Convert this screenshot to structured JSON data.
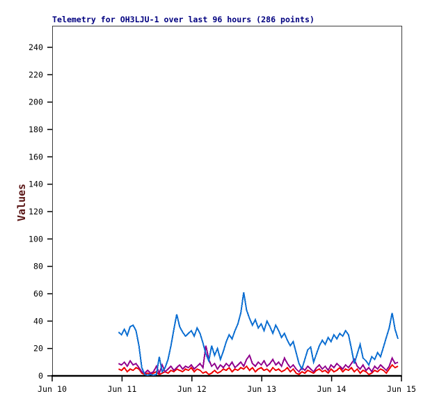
{
  "chart": {
    "title": "Telemetry for OH3LJU-1 over last 96 hours (286 points)",
    "title_color": "#000080",
    "ylabel": "Values",
    "ylabel_color": "#5a1515",
    "frame_color": "#3c3c3c",
    "axis_color": "#000000",
    "tick_color": "#000000"
  },
  "chart_data": {
    "type": "line",
    "title": "Telemetry for OH3LJU-1 over last 96 hours (286 points)",
    "xlabel": "",
    "ylabel": "Values",
    "points_shown": 286,
    "ylim": [
      0,
      255
    ],
    "yticks": [
      0,
      20,
      40,
      60,
      80,
      100,
      120,
      140,
      160,
      180,
      200,
      220,
      240
    ],
    "xtick_labels": [
      "Jun 10",
      "Jun 11",
      "Jun 12",
      "Jun 13",
      "Jun 14",
      "Jun 15"
    ],
    "x_days_span": 5,
    "x_start_day_offset": 0.95,
    "x_step_hours": 1,
    "grid": false,
    "legend": "none",
    "series": [
      {
        "name": "red",
        "color": "#ee0000",
        "values": [
          5,
          4,
          6,
          3,
          5,
          4,
          6,
          5,
          2,
          1,
          2,
          1,
          2,
          3,
          1,
          2,
          3,
          2,
          4,
          3,
          5,
          4,
          3,
          5,
          4,
          6,
          3,
          5,
          4,
          2,
          3,
          1,
          2,
          4,
          2,
          3,
          5,
          4,
          6,
          3,
          5,
          4,
          6,
          5,
          7,
          4,
          6,
          3,
          5,
          6,
          4,
          5,
          3,
          6,
          4,
          5,
          3,
          4,
          6,
          3,
          5,
          2,
          1,
          3,
          2,
          4,
          3,
          2,
          4,
          5,
          3,
          4,
          2,
          5,
          3,
          4,
          6,
          3,
          5,
          4,
          6,
          3,
          5,
          2,
          4,
          3,
          1,
          2,
          4,
          3,
          5,
          4,
          2,
          5,
          8,
          6,
          7
        ]
      },
      {
        "name": "purple",
        "color": "#90008e",
        "values": [
          9,
          8,
          10,
          7,
          11,
          8,
          9,
          6,
          3,
          2,
          4,
          2,
          3,
          7,
          2,
          8,
          3,
          5,
          7,
          4,
          6,
          8,
          5,
          7,
          6,
          8,
          5,
          7,
          9,
          6,
          22,
          12,
          7,
          9,
          5,
          8,
          6,
          9,
          7,
          10,
          6,
          8,
          10,
          7,
          12,
          15,
          9,
          7,
          10,
          8,
          11,
          7,
          9,
          12,
          8,
          10,
          7,
          13,
          9,
          6,
          8,
          5,
          3,
          6,
          4,
          7,
          5,
          3,
          6,
          8,
          5,
          7,
          4,
          8,
          6,
          9,
          7,
          5,
          8,
          6,
          9,
          12,
          7,
          5,
          8,
          4,
          6,
          3,
          7,
          5,
          8,
          6,
          4,
          7,
          13,
          9,
          10
        ]
      },
      {
        "name": "blue",
        "color": "#0d6fd2",
        "values": [
          32,
          30,
          34,
          29.5,
          36,
          37,
          33,
          22,
          6,
          1,
          0.5,
          1,
          0.5,
          1,
          14,
          3,
          6,
          12,
          22,
          34,
          45,
          36,
          32,
          29,
          31,
          33,
          29,
          35,
          31,
          24,
          16,
          11,
          22,
          15,
          20,
          12,
          18,
          25,
          30,
          27,
          33,
          38,
          46,
          61,
          48,
          42,
          37,
          41,
          35,
          38,
          33,
          40,
          36,
          31,
          37,
          33,
          28,
          31,
          26,
          22,
          25,
          17,
          9,
          5,
          12,
          19,
          21,
          10,
          16,
          22,
          26,
          23,
          28,
          25,
          30,
          27,
          31,
          29,
          33,
          30,
          20,
          9,
          16,
          23,
          13,
          11,
          8,
          14,
          12,
          17,
          14,
          21,
          28,
          35,
          46,
          34,
          27
        ]
      }
    ]
  }
}
